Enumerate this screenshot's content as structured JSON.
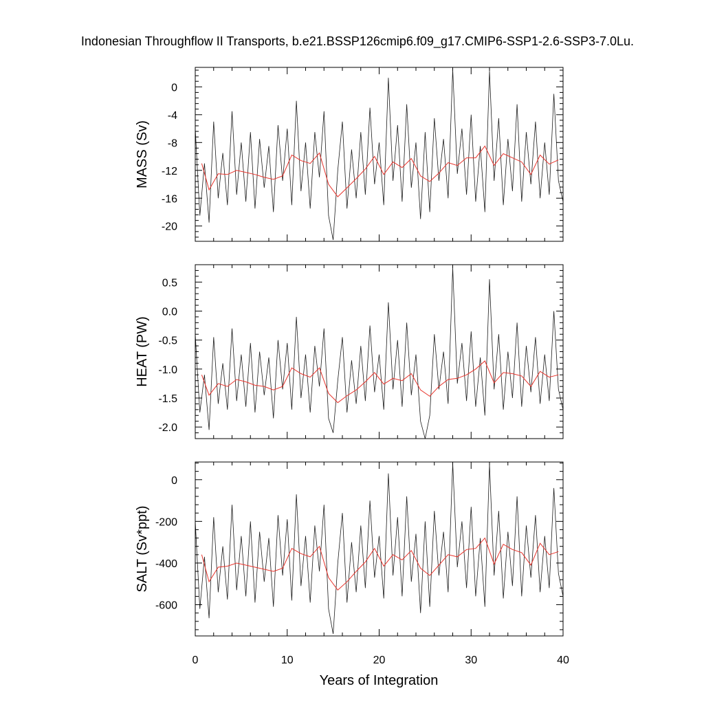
{
  "title": "Indonesian Throughflow II Transports, b.e21.BSSP126cmip6.f09_g17.CMIP6-SSP1-2.6-SSP3-7.0Lu.",
  "xlabel": "Years of Integration",
  "colors": {
    "raw": "#1a1a1a",
    "annual_mean": "#e8322a"
  },
  "chart_data": [
    {
      "type": "line",
      "ylabel": "MASS (Sv)",
      "xlim": [
        0,
        40
      ],
      "ylim": [
        -22.2,
        2.8
      ],
      "xticks": [
        0,
        10,
        20,
        30,
        40
      ],
      "yticks": [
        0,
        -4,
        -8,
        -12,
        -16,
        -20
      ],
      "ytick_labels": [
        "0",
        "-4",
        "-8",
        "-12",
        "-16",
        "-20"
      ],
      "series": [
        {
          "role": "monthly",
          "color": "#1a1a1a",
          "x": [
            0.0,
            0.5,
            1.0,
            1.5,
            2.0,
            2.5,
            3.0,
            3.5,
            4.0,
            4.5,
            5.0,
            5.5,
            6.0,
            6.5,
            7.0,
            7.5,
            8.0,
            8.5,
            9.0,
            9.5,
            10.0,
            10.5,
            11.0,
            11.5,
            12.0,
            12.5,
            13.0,
            13.5,
            14.0,
            14.5,
            15.0,
            15.5,
            16.0,
            16.5,
            17.0,
            17.5,
            18.0,
            18.5,
            19.0,
            19.5,
            20.0,
            20.5,
            21.0,
            21.5,
            22.0,
            22.5,
            23.0,
            23.5,
            24.0,
            24.5,
            25.0,
            25.5,
            26.0,
            26.5,
            27.0,
            27.5,
            28.0,
            28.5,
            29.0,
            29.5,
            30.0,
            30.5,
            31.0,
            31.5,
            32.0,
            32.5,
            33.0,
            33.5,
            34.0,
            34.5,
            35.0,
            35.5,
            36.0,
            36.5,
            37.0,
            37.5,
            38.0,
            38.5,
            39.0,
            39.5,
            40.0
          ],
          "y": [
            -6.0,
            -18.5,
            -11.0,
            -19.5,
            -5.0,
            -16.0,
            -9.5,
            -17.0,
            -3.5,
            -15.5,
            -8.0,
            -16.5,
            -6.5,
            -17.5,
            -7.5,
            -14.5,
            -8.5,
            -18.0,
            -5.5,
            -13.5,
            -6.0,
            -17.0,
            -2.0,
            -15.0,
            -8.0,
            -17.5,
            -6.5,
            -13.0,
            -3.5,
            -18.5,
            -22.0,
            -12.0,
            -5.0,
            -17.5,
            -9.0,
            -16.0,
            -6.5,
            -15.5,
            -3.0,
            -14.0,
            -8.0,
            -17.0,
            1.3,
            -13.5,
            -5.5,
            -16.5,
            -2.5,
            -14.5,
            -8.0,
            -19.0,
            -6.5,
            -18.0,
            -4.5,
            -13.5,
            -7.5,
            -16.0,
            2.5,
            -12.5,
            -6.0,
            -15.5,
            -4.0,
            -16.5,
            -8.5,
            -18.0,
            2.3,
            -13.5,
            -4.5,
            -17.0,
            -7.5,
            -15.0,
            -2.5,
            -16.5,
            -6.5,
            -14.0,
            -5.0,
            -16.0,
            -8.0,
            -15.5,
            -1.0,
            -13.5,
            -16.5
          ]
        },
        {
          "role": "annual mean",
          "color": "#e8322a",
          "x": [
            0.7,
            1.5,
            2.5,
            3.5,
            4.5,
            5.5,
            6.5,
            7.5,
            8.5,
            9.5,
            10.5,
            11.5,
            12.5,
            13.5,
            14.5,
            15.5,
            16.5,
            17.5,
            18.5,
            19.5,
            20.5,
            21.5,
            22.5,
            23.5,
            24.5,
            25.5,
            26.5,
            27.5,
            28.5,
            29.5,
            30.5,
            31.5,
            32.5,
            33.5,
            34.5,
            35.5,
            36.5,
            37.5,
            38.5,
            39.5
          ],
          "y": [
            -11.0,
            -14.8,
            -12.5,
            -12.6,
            -12.0,
            -12.3,
            -12.6,
            -13.0,
            -13.3,
            -12.8,
            -9.8,
            -10.6,
            -11.0,
            -9.5,
            -14.0,
            -15.8,
            -14.5,
            -13.2,
            -11.8,
            -10.0,
            -12.6,
            -10.8,
            -11.6,
            -10.3,
            -12.8,
            -13.6,
            -12.4,
            -10.9,
            -11.3,
            -10.2,
            -10.2,
            -8.5,
            -11.3,
            -9.6,
            -10.2,
            -10.8,
            -12.6,
            -9.8,
            -11.1,
            -10.5
          ]
        }
      ]
    },
    {
      "type": "line",
      "ylabel": "HEAT (PW)",
      "xlim": [
        0,
        40
      ],
      "ylim": [
        -2.2,
        0.8
      ],
      "xticks": [
        0,
        10,
        20,
        30,
        40
      ],
      "yticks": [
        0.5,
        0.0,
        -0.5,
        -1.0,
        -1.5,
        -2.0
      ],
      "ytick_labels": [
        "0.5",
        "0.0",
        "-0.5",
        "-1.0",
        "-1.5",
        "-2.0"
      ],
      "series": [
        {
          "role": "monthly",
          "color": "#1a1a1a",
          "x": [
            0.0,
            0.5,
            1.0,
            1.5,
            2.0,
            2.5,
            3.0,
            3.5,
            4.0,
            4.5,
            5.0,
            5.5,
            6.0,
            6.5,
            7.0,
            7.5,
            8.0,
            8.5,
            9.0,
            9.5,
            10.0,
            10.5,
            11.0,
            11.5,
            12.0,
            12.5,
            13.0,
            13.5,
            14.0,
            14.5,
            15.0,
            15.5,
            16.0,
            16.5,
            17.0,
            17.5,
            18.0,
            18.5,
            19.0,
            19.5,
            20.0,
            20.5,
            21.0,
            21.5,
            22.0,
            22.5,
            23.0,
            23.5,
            24.0,
            24.5,
            25.0,
            25.5,
            26.0,
            26.5,
            27.0,
            27.5,
            28.0,
            28.5,
            29.0,
            29.5,
            30.0,
            30.5,
            31.0,
            31.5,
            32.0,
            32.5,
            33.0,
            33.5,
            34.0,
            34.5,
            35.0,
            35.5,
            36.0,
            36.5,
            37.0,
            37.5,
            38.0,
            38.5,
            39.0,
            39.5,
            40.0
          ],
          "y": [
            -0.4,
            -1.75,
            -1.1,
            -2.05,
            -0.45,
            -1.6,
            -0.9,
            -1.7,
            -0.3,
            -1.55,
            -0.75,
            -1.65,
            -0.55,
            -1.75,
            -0.7,
            -1.45,
            -0.8,
            -1.85,
            -0.5,
            -1.35,
            -0.55,
            -1.7,
            -0.1,
            -1.5,
            -0.75,
            -1.75,
            -0.6,
            -1.3,
            -0.3,
            -1.85,
            -2.1,
            -1.2,
            -0.45,
            -1.75,
            -0.85,
            -1.6,
            -0.6,
            -1.55,
            -0.25,
            -1.4,
            -0.75,
            -1.7,
            0.15,
            -1.35,
            -0.5,
            -1.65,
            -0.2,
            -1.45,
            -0.75,
            -1.9,
            -2.2,
            -1.8,
            -0.4,
            -1.35,
            -0.7,
            -1.6,
            0.75,
            -1.25,
            -0.55,
            -1.55,
            -0.35,
            -1.65,
            -0.8,
            -1.8,
            0.55,
            -1.35,
            -0.4,
            -1.7,
            -0.7,
            -1.5,
            -0.2,
            -1.65,
            -0.6,
            -1.4,
            -0.45,
            -1.6,
            -0.75,
            -1.55,
            0.0,
            -1.35,
            -1.7
          ]
        },
        {
          "role": "annual mean",
          "color": "#e8322a",
          "x": [
            0.7,
            1.5,
            2.5,
            3.5,
            4.5,
            5.5,
            6.5,
            7.5,
            8.5,
            9.5,
            10.5,
            11.5,
            12.5,
            13.5,
            14.5,
            15.5,
            16.5,
            17.5,
            18.5,
            19.5,
            20.5,
            21.5,
            22.5,
            23.5,
            24.5,
            25.5,
            26.5,
            27.5,
            28.5,
            29.5,
            30.5,
            31.5,
            32.5,
            33.5,
            34.5,
            35.5,
            36.5,
            37.5,
            38.5,
            39.5
          ],
          "y": [
            -1.1,
            -1.45,
            -1.25,
            -1.3,
            -1.18,
            -1.22,
            -1.28,
            -1.3,
            -1.36,
            -1.3,
            -0.98,
            -1.08,
            -1.14,
            -0.98,
            -1.42,
            -1.58,
            -1.46,
            -1.36,
            -1.22,
            -1.06,
            -1.26,
            -1.16,
            -1.2,
            -1.08,
            -1.36,
            -1.47,
            -1.3,
            -1.18,
            -1.16,
            -1.1,
            -1.0,
            -0.86,
            -1.24,
            -1.06,
            -1.08,
            -1.12,
            -1.3,
            -1.04,
            -1.14,
            -1.1
          ]
        }
      ]
    },
    {
      "type": "line",
      "ylabel": "SALT (Sv*ppt)",
      "xlim": [
        0,
        40
      ],
      "ylim": [
        -750,
        85
      ],
      "xticks": [
        0,
        10,
        20,
        30,
        40
      ],
      "xtick_labels": [
        "0",
        "10",
        "20",
        "30",
        "40"
      ],
      "yticks": [
        0,
        -200,
        -400,
        -600
      ],
      "ytick_labels": [
        "0",
        "-200",
        "-400",
        "-600"
      ],
      "series": [
        {
          "role": "monthly",
          "color": "#1a1a1a",
          "x": [
            0.0,
            0.5,
            1.0,
            1.5,
            2.0,
            2.5,
            3.0,
            3.5,
            4.0,
            4.5,
            5.0,
            5.5,
            6.0,
            6.5,
            7.0,
            7.5,
            8.0,
            8.5,
            9.0,
            9.5,
            10.0,
            10.5,
            11.0,
            11.5,
            12.0,
            12.5,
            13.0,
            13.5,
            14.0,
            14.5,
            15.0,
            15.5,
            16.0,
            16.5,
            17.0,
            17.5,
            18.0,
            18.5,
            19.0,
            19.5,
            20.0,
            20.5,
            21.0,
            21.5,
            22.0,
            22.5,
            23.0,
            23.5,
            24.0,
            24.5,
            25.0,
            25.5,
            26.0,
            26.5,
            27.0,
            27.5,
            28.0,
            28.5,
            29.0,
            29.5,
            30.0,
            30.5,
            31.0,
            31.5,
            32.0,
            32.5,
            33.0,
            33.5,
            34.0,
            34.5,
            35.0,
            35.5,
            36.0,
            36.5,
            37.0,
            37.5,
            38.0,
            38.5,
            39.0,
            39.5,
            40.0
          ],
          "y": [
            -200,
            -620,
            -370,
            -665,
            -180,
            -540,
            -320,
            -575,
            -120,
            -530,
            -270,
            -560,
            -200,
            -590,
            -250,
            -490,
            -280,
            -610,
            -170,
            -460,
            -190,
            -580,
            -70,
            -510,
            -270,
            -590,
            -220,
            -440,
            -120,
            -620,
            -740,
            -400,
            -160,
            -590,
            -300,
            -540,
            -220,
            -520,
            -100,
            -470,
            -270,
            -570,
            30,
            -460,
            -180,
            -560,
            -80,
            -490,
            -260,
            -640,
            -200,
            -610,
            -150,
            -460,
            -250,
            -540,
            80,
            -420,
            -200,
            -520,
            -130,
            -560,
            -280,
            -610,
            75,
            -460,
            -150,
            -570,
            -250,
            -510,
            -80,
            -560,
            -220,
            -470,
            -170,
            -540,
            -270,
            -520,
            -40,
            -450,
            -560
          ]
        },
        {
          "role": "annual mean",
          "color": "#e8322a",
          "x": [
            0.7,
            1.5,
            2.5,
            3.5,
            4.5,
            5.5,
            6.5,
            7.5,
            8.5,
            9.5,
            10.5,
            11.5,
            12.5,
            13.5,
            14.5,
            15.5,
            16.5,
            17.5,
            18.5,
            19.5,
            20.5,
            21.5,
            22.5,
            23.5,
            24.5,
            25.5,
            26.5,
            27.5,
            28.5,
            29.5,
            30.5,
            31.5,
            32.5,
            33.5,
            34.5,
            35.5,
            36.5,
            37.5,
            38.5,
            39.5
          ],
          "y": [
            -360,
            -490,
            -420,
            -415,
            -400,
            -410,
            -420,
            -430,
            -440,
            -425,
            -330,
            -355,
            -370,
            -320,
            -470,
            -530,
            -490,
            -440,
            -395,
            -330,
            -415,
            -360,
            -385,
            -340,
            -425,
            -460,
            -410,
            -360,
            -370,
            -335,
            -330,
            -280,
            -405,
            -310,
            -335,
            -350,
            -410,
            -305,
            -360,
            -345
          ]
        }
      ]
    }
  ]
}
